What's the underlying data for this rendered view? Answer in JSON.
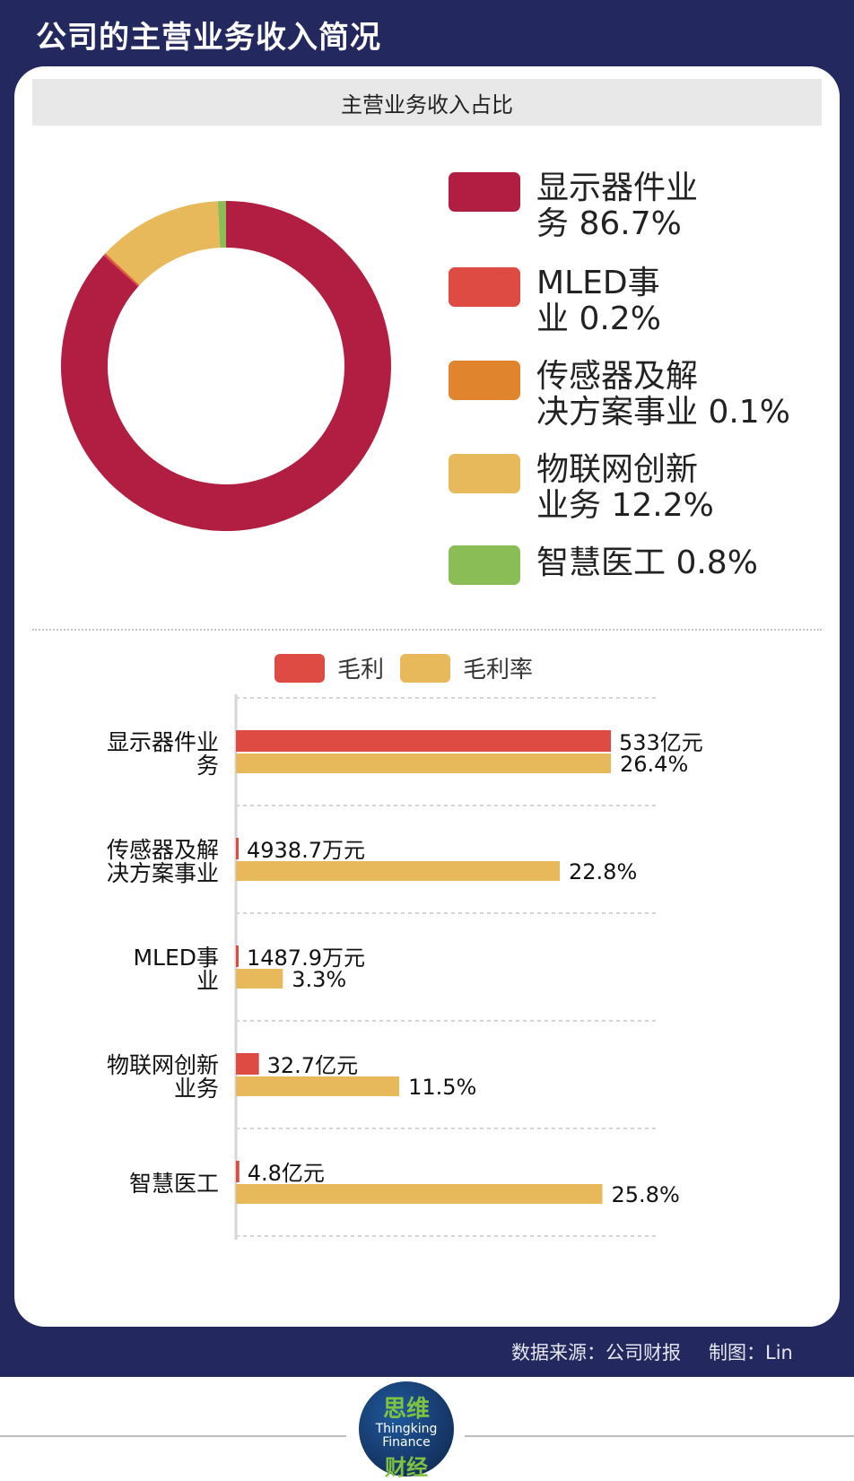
{
  "header": {
    "title": "公司的主营业务收入简况"
  },
  "pie_section": {
    "subtitle": "主营业务收入占比"
  },
  "colors": {
    "navy": "#23295f",
    "display": "#b11e41",
    "mled": "#dd4b43",
    "sensor": "#e0852e",
    "iot": "#e8b95b",
    "medical": "#8bbd57",
    "gross_profit": "#dd4b43",
    "gross_margin": "#e8b95b"
  },
  "chart_data": [
    {
      "type": "pie",
      "style": "donut",
      "title": "主营业务收入占比",
      "slices": [
        {
          "label": "显示器件业务",
          "value": 86.7,
          "value_text": "86.7%",
          "color": "#b11e41"
        },
        {
          "label": "MLED事业",
          "value": 0.2,
          "value_text": "0.2%",
          "color": "#dd4b43"
        },
        {
          "label": "传感器及解决方案事业",
          "value": 0.1,
          "value_text": "0.1%",
          "color": "#e0852e"
        },
        {
          "label": "物联网创新业务",
          "value": 12.2,
          "value_text": "12.2%",
          "color": "#e8b95b"
        },
        {
          "label": "智慧医工",
          "value": 0.8,
          "value_text": "0.8%",
          "color": "#8bbd57"
        }
      ],
      "legend_placement": "right",
      "legend_lines": [
        [
          "显示器件业",
          "务 86.7%"
        ],
        [
          "MLED事",
          "业 0.2%"
        ],
        [
          "传感器及解",
          "决方案事业 0.1%"
        ],
        [
          "物联网创新",
          "业务 12.2%"
        ],
        [
          "智慧医工 0.8%"
        ]
      ]
    },
    {
      "type": "bar",
      "orientation": "horizontal",
      "legend_placement": "top",
      "grid": true,
      "series": [
        {
          "name": "毛利",
          "color": "#dd4b43"
        },
        {
          "name": "毛利率",
          "color": "#e8b95b"
        }
      ],
      "categories": [
        {
          "label_lines": [
            "显示器件业",
            "务"
          ],
          "gross_profit": 533,
          "gross_profit_unit": "亿元",
          "gross_profit_text": "533亿元",
          "gross_margin": 26.4,
          "gross_margin_text": "26.4%"
        },
        {
          "label_lines": [
            "传感器及解",
            "决方案事业"
          ],
          "gross_profit": 0.49387,
          "gross_profit_unit": "亿元",
          "gross_profit_text": "4938.7万元",
          "gross_margin": 22.8,
          "gross_margin_text": "22.8%"
        },
        {
          "label_lines": [
            "MLED事",
            "业"
          ],
          "gross_profit": 0.14879,
          "gross_profit_unit": "亿元",
          "gross_profit_text": "1487.9万元",
          "gross_margin": 3.3,
          "gross_margin_text": "3.3%"
        },
        {
          "label_lines": [
            "物联网创新",
            "业务"
          ],
          "gross_profit": 32.7,
          "gross_profit_unit": "亿元",
          "gross_profit_text": "32.7亿元",
          "gross_margin": 11.5,
          "gross_margin_text": "11.5%"
        },
        {
          "label_lines": [
            "智慧医工"
          ],
          "gross_profit": 4.8,
          "gross_profit_unit": "亿元",
          "gross_profit_text": "4.8亿元",
          "gross_margin": 25.8,
          "gross_margin_text": "25.8%"
        }
      ],
      "gross_profit_max": 533,
      "gross_margin_max": 26.4
    }
  ],
  "footer": {
    "source": "数据来源：公司财报",
    "maker": "制图：Lin"
  },
  "logo": {
    "top": "思维",
    "mid_lines": [
      "Thingking",
      "Finance"
    ],
    "bottom": "财经"
  }
}
